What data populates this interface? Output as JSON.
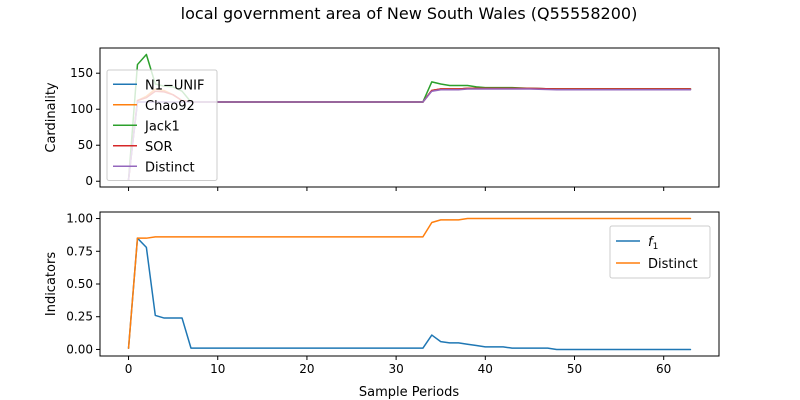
{
  "figure": {
    "suptitle": "local government area of New South Wales (Q55558200)",
    "xlabel": "Sample Periods"
  },
  "chart_data": [
    {
      "type": "line",
      "ylabel": "Cardinality",
      "xlim": [
        -3.2,
        66.2
      ],
      "ylim": [
        -8,
        185
      ],
      "x_ticks": [
        0,
        10,
        20,
        30,
        40,
        50,
        60
      ],
      "x_tick_labels_shown": false,
      "y_ticks": [
        0,
        50,
        100,
        150
      ],
      "y_tick_labels": [
        "0",
        "50",
        "100",
        "150"
      ],
      "legend": {
        "placement": "upper-left"
      },
      "grid": false,
      "series": [
        {
          "name": "N1−UNIF",
          "color": "#1f77b4",
          "points": [
            [
              0,
              2
            ],
            [
              1,
              110
            ],
            [
              2,
              110
            ],
            [
              3,
              110
            ],
            [
              4,
              110
            ],
            [
              5,
              110
            ],
            [
              6,
              110
            ],
            [
              7,
              110
            ],
            [
              10,
              110
            ],
            [
              20,
              110
            ],
            [
              30,
              110
            ],
            [
              33,
              110
            ],
            [
              34,
              126
            ],
            [
              35,
              128
            ],
            [
              36,
              128
            ],
            [
              37,
              128
            ],
            [
              38,
              129
            ],
            [
              40,
              129
            ],
            [
              45,
              129
            ],
            [
              48,
              128
            ],
            [
              55,
              128
            ],
            [
              63,
              128
            ]
          ]
        },
        {
          "name": "Chao92",
          "color": "#ff7f0e",
          "points": [
            [
              0,
              2
            ],
            [
              1,
              112
            ],
            [
              2,
              118
            ],
            [
              3,
              128
            ],
            [
              4,
              126
            ],
            [
              5,
              120
            ],
            [
              6,
              112
            ],
            [
              7,
              110
            ],
            [
              10,
              110
            ],
            [
              20,
              110
            ],
            [
              30,
              110
            ],
            [
              33,
              110
            ],
            [
              34,
              126
            ],
            [
              35,
              128
            ],
            [
              36,
              128
            ],
            [
              37,
              128
            ],
            [
              38,
              129
            ],
            [
              40,
              129
            ],
            [
              45,
              129
            ],
            [
              48,
              128
            ],
            [
              55,
              128
            ],
            [
              63,
              128
            ]
          ]
        },
        {
          "name": "Jack1",
          "color": "#2ca02c",
          "points": [
            [
              0,
              2
            ],
            [
              1,
              162
            ],
            [
              2,
              176
            ],
            [
              3,
              135
            ],
            [
              4,
              132
            ],
            [
              5,
              131
            ],
            [
              6,
              125
            ],
            [
              7,
              110
            ],
            [
              10,
              110
            ],
            [
              20,
              110
            ],
            [
              30,
              110
            ],
            [
              33,
              110
            ],
            [
              34,
              138
            ],
            [
              35,
              135
            ],
            [
              36,
              133
            ],
            [
              37,
              133
            ],
            [
              38,
              133
            ],
            [
              39,
              131
            ],
            [
              40,
              130
            ],
            [
              43,
              130
            ],
            [
              45,
              129
            ],
            [
              48,
              128
            ],
            [
              55,
              128
            ],
            [
              63,
              128
            ]
          ]
        },
        {
          "name": "SOR",
          "color": "#d62728",
          "points": [
            [
              0,
              2
            ],
            [
              1,
              112
            ],
            [
              2,
              116
            ],
            [
              3,
              125
            ],
            [
              4,
              124
            ],
            [
              5,
              120
            ],
            [
              6,
              112
            ],
            [
              7,
              110
            ],
            [
              10,
              110
            ],
            [
              20,
              110
            ],
            [
              30,
              110
            ],
            [
              33,
              110
            ],
            [
              34,
              126
            ],
            [
              35,
              128
            ],
            [
              36,
              128
            ],
            [
              37,
              128
            ],
            [
              38,
              129
            ],
            [
              40,
              129
            ],
            [
              45,
              129
            ],
            [
              48,
              128
            ],
            [
              55,
              128
            ],
            [
              63,
              128
            ]
          ]
        },
        {
          "name": "Distinct",
          "color": "#9467bd",
          "points": [
            [
              0,
              2
            ],
            [
              1,
              110
            ],
            [
              2,
              110
            ],
            [
              3,
              110
            ],
            [
              4,
              110
            ],
            [
              5,
              110
            ],
            [
              6,
              110
            ],
            [
              7,
              110
            ],
            [
              10,
              110
            ],
            [
              20,
              110
            ],
            [
              30,
              110
            ],
            [
              33,
              110
            ],
            [
              34,
              125
            ],
            [
              35,
              127
            ],
            [
              36,
              127
            ],
            [
              37,
              127
            ],
            [
              38,
              128
            ],
            [
              40,
              128
            ],
            [
              45,
              128
            ],
            [
              48,
              127
            ],
            [
              55,
              127
            ],
            [
              63,
              127
            ]
          ]
        }
      ]
    },
    {
      "type": "line",
      "ylabel": "Indicators",
      "xlim": [
        -3.2,
        66.2
      ],
      "ylim": [
        -0.05,
        1.05
      ],
      "x_ticks": [
        0,
        10,
        20,
        30,
        40,
        50,
        60
      ],
      "x_tick_labels": [
        "0",
        "10",
        "20",
        "30",
        "40",
        "50",
        "60"
      ],
      "y_ticks": [
        0.0,
        0.25,
        0.5,
        0.75,
        1.0
      ],
      "y_tick_labels": [
        "0.00",
        "0.25",
        "0.50",
        "0.75",
        "1.00"
      ],
      "legend": {
        "placement": "upper-right"
      },
      "grid": false,
      "series": [
        {
          "name": "f1",
          "name_main": "f",
          "name_sub": "1",
          "color": "#1f77b4",
          "points": [
            [
              0,
              0.01
            ],
            [
              1,
              0.85
            ],
            [
              2,
              0.78
            ],
            [
              3,
              0.26
            ],
            [
              4,
              0.24
            ],
            [
              5,
              0.24
            ],
            [
              6,
              0.24
            ],
            [
              7,
              0.01
            ],
            [
              10,
              0.01
            ],
            [
              20,
              0.01
            ],
            [
              30,
              0.01
            ],
            [
              33,
              0.01
            ],
            [
              34,
              0.11
            ],
            [
              35,
              0.06
            ],
            [
              36,
              0.05
            ],
            [
              37,
              0.05
            ],
            [
              38,
              0.04
            ],
            [
              39,
              0.03
            ],
            [
              40,
              0.02
            ],
            [
              42,
              0.02
            ],
            [
              43,
              0.01
            ],
            [
              47,
              0.01
            ],
            [
              48,
              0.0
            ],
            [
              63,
              0.0
            ]
          ]
        },
        {
          "name": "Distinct",
          "color": "#ff7f0e",
          "points": [
            [
              0,
              0.01
            ],
            [
              1,
              0.85
            ],
            [
              2,
              0.85
            ],
            [
              3,
              0.86
            ],
            [
              4,
              0.86
            ],
            [
              10,
              0.86
            ],
            [
              20,
              0.86
            ],
            [
              30,
              0.86
            ],
            [
              33,
              0.86
            ],
            [
              34,
              0.97
            ],
            [
              35,
              0.99
            ],
            [
              36,
              0.99
            ],
            [
              37,
              0.99
            ],
            [
              38,
              1.0
            ],
            [
              40,
              1.0
            ],
            [
              50,
              1.0
            ],
            [
              63,
              1.0
            ]
          ]
        }
      ]
    }
  ]
}
